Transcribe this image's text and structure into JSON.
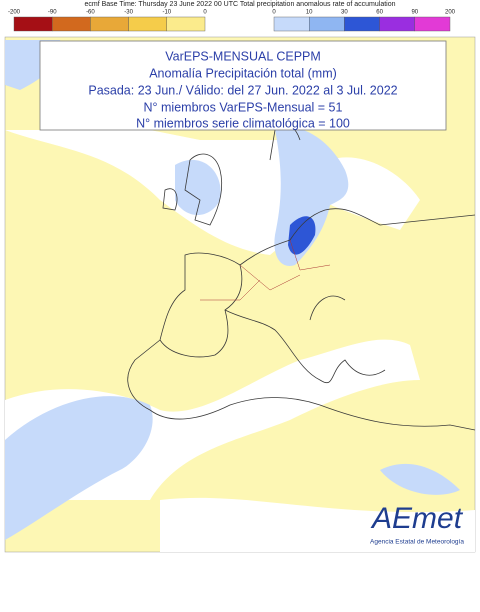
{
  "header": {
    "text": "ecmf  Base Time: Thursday 23 June 2022 00 UTC Total precipitation anomalous rate of accumulation"
  },
  "colorbar": {
    "negative": {
      "labels": [
        -200,
        -90,
        -60,
        -30,
        -10,
        0
      ],
      "colors": [
        "#a50f15",
        "#d2691e",
        "#e8a838",
        "#f5cc4a",
        "#fbeb8c"
      ]
    },
    "positive": {
      "labels": [
        0,
        10,
        30,
        60,
        90,
        200
      ],
      "colors": [
        "#c6dafa",
        "#8fb6f2",
        "#2d56d6",
        "#9a2ee0",
        "#e23ad6"
      ]
    }
  },
  "title_box": {
    "lines": [
      "VarEPS-MENSUAL CEPPM",
      "Anomalía Precipitación total (mm)",
      "Pasada: 23 Jun./ Válido: del 27 Jun. 2022 al 3 Jul. 2022",
      "N° miembros VarEPS-Mensual = 51",
      "N° miembros serie climatológica = 100"
    ]
  },
  "logo": {
    "name": "AEmet",
    "subtitle": "Agencia Estatal de Meteorología"
  }
}
